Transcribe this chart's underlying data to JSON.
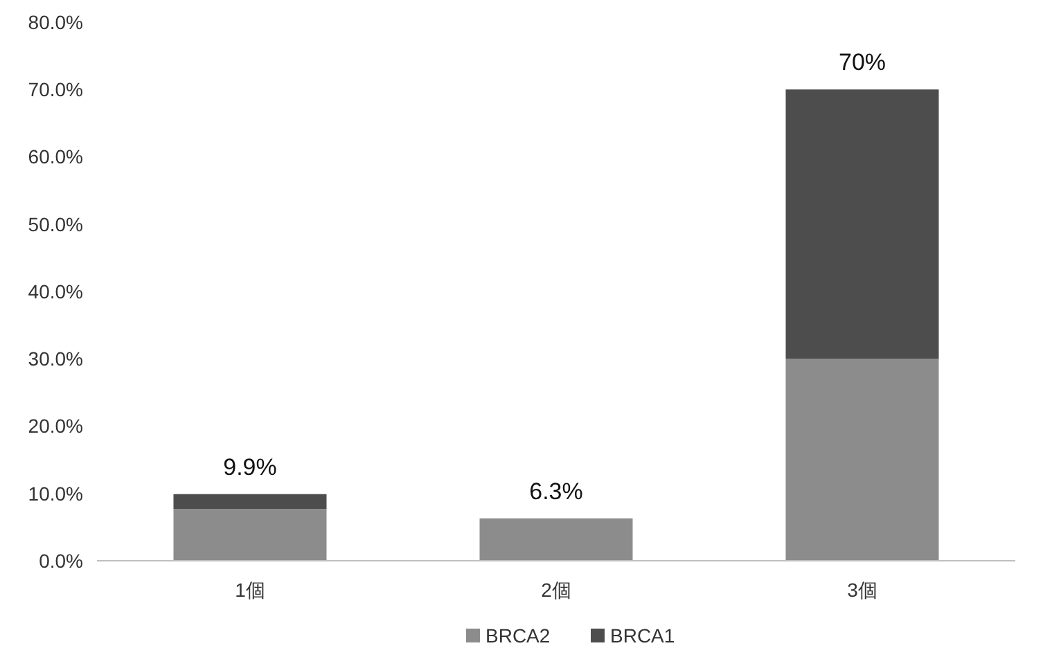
{
  "chart_data": {
    "type": "bar",
    "stacked": true,
    "categories": [
      "1個",
      "2個",
      "3個"
    ],
    "series": [
      {
        "name": "BRCA2",
        "color": "#8c8c8c",
        "values": [
          7.7,
          6.3,
          30
        ]
      },
      {
        "name": "BRCA1",
        "color": "#4d4d4d",
        "values": [
          2.2,
          0,
          40
        ]
      }
    ],
    "ylim": [
      0,
      80
    ],
    "yticks": [
      {
        "value": 0,
        "label": "0.0%"
      },
      {
        "value": 10,
        "label": "10.0%"
      },
      {
        "value": 20,
        "label": "20.0%"
      },
      {
        "value": 30,
        "label": "30.0%"
      },
      {
        "value": 40,
        "label": "40.0%"
      },
      {
        "value": 50,
        "label": "50.0%"
      },
      {
        "value": 60,
        "label": "60.0%"
      },
      {
        "value": 70,
        "label": "70.0%"
      },
      {
        "value": 80,
        "label": "80.0%"
      }
    ],
    "totals": [
      "9.9%",
      "6.3%",
      "70%"
    ],
    "legend": "bottom"
  }
}
